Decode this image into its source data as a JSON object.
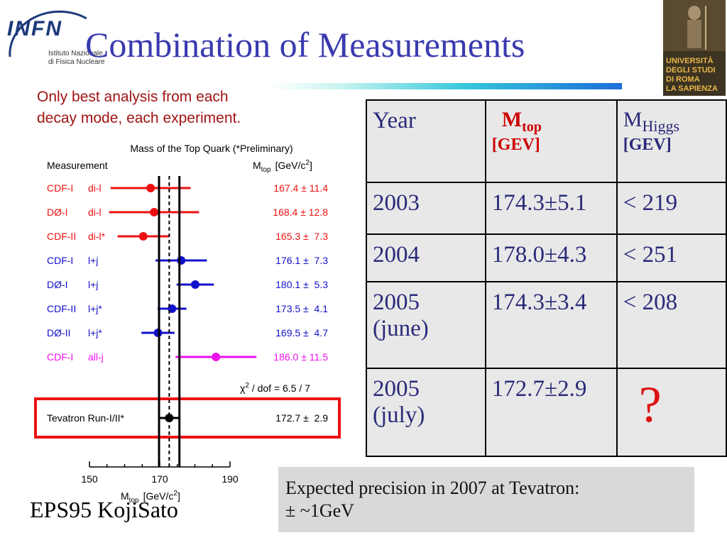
{
  "title": "Combination of Measurements",
  "subtitle": [
    "Only best analysis from each",
    "decay mode, each experiment."
  ],
  "infn_logo": {
    "name": "INFN",
    "line1": "Istituto Nazionale",
    "line2": "di Fisica Nucleare"
  },
  "university_logo": {
    "lines": [
      "UNIVERSITÀ",
      "DEGLI STUDI",
      "DI ROMA",
      "LA SAPIENZA"
    ]
  },
  "table": {
    "headers": {
      "year": "Year",
      "mtop_symbol": "M",
      "mtop_sub": "top",
      "mtop_unit": "[GEV]",
      "mhiggs_symbol": "M",
      "mhiggs_sub": "Higgs",
      "mhiggs_unit": "[GEV]"
    },
    "rows": [
      {
        "year": "2003",
        "year2": "",
        "mtop": "174.3±5.1",
        "mhiggs": "< 219"
      },
      {
        "year": "2004",
        "year2": "",
        "mtop": "178.0±4.3",
        "mhiggs": "< 251"
      },
      {
        "year": "2005",
        "year2": "(june)",
        "mtop": "174.3±3.4",
        "mhiggs": "< 208"
      },
      {
        "year": "2005",
        "year2": "(july)",
        "mtop": "172.7±2.9",
        "mhiggs": "?"
      }
    ]
  },
  "note": {
    "line1": "Expected precision in 2007 at Tevatron:",
    "line2": "± ~1GeV"
  },
  "footer": "EPS95  KojiSato",
  "chart_data": {
    "type": "scatter",
    "title": "Mass of the Top Quark (*Preliminary)",
    "header_left": "Measurement",
    "header_right_symbol": "M",
    "header_right_sub": "top",
    "header_right_unit": "[GeV/c",
    "header_right_sup": "2",
    "header_right_close": "]",
    "xlabel_symbol": "M",
    "xlabel_sub": "top",
    "xlabel_unit": "[GeV/c",
    "xlabel_sup": "2",
    "xlabel_close": "]",
    "xlim": [
      150,
      190
    ],
    "xticks": [
      150,
      170,
      190
    ],
    "combined_value": 172.7,
    "combined_error": 2.9,
    "colors": {
      "red": "#ee1111",
      "blue": "#1111cc",
      "magenta": "#ee11ee",
      "black": "#000000",
      "box": "#ee1111"
    },
    "measurements": [
      {
        "experiment": "CDF-I",
        "channel": "di-l",
        "value": 167.4,
        "error": 11.4,
        "label": "167.4 ± 11.4",
        "color": "red"
      },
      {
        "experiment": "DØ-I",
        "channel": "di-l",
        "value": 168.4,
        "error": 12.8,
        "label": "168.4 ± 12.8",
        "color": "red"
      },
      {
        "experiment": "CDF-II",
        "channel": "di-l*",
        "value": 165.3,
        "error": 7.3,
        "label": "165.3 ±  7.3",
        "color": "red"
      },
      {
        "experiment": "CDF-I",
        "channel": "l+j",
        "value": 176.1,
        "error": 7.3,
        "label": "176.1 ±  7.3",
        "color": "blue"
      },
      {
        "experiment": "DØ-I",
        "channel": "l+j",
        "value": 180.1,
        "error": 5.3,
        "label": "180.1 ±  5.3",
        "color": "blue"
      },
      {
        "experiment": "CDF-II",
        "channel": "l+j*",
        "value": 173.5,
        "error": 4.1,
        "label": "173.5 ±  4.1",
        "color": "blue"
      },
      {
        "experiment": "DØ-II",
        "channel": "l+j*",
        "value": 169.5,
        "error": 4.7,
        "label": "169.5 ±  4.7",
        "color": "blue"
      },
      {
        "experiment": "CDF-I",
        "channel": "all-j",
        "value": 186.0,
        "error": 11.5,
        "label": "186.0 ± 11.5",
        "color": "magenta"
      }
    ],
    "chi2_symbol": "χ",
    "chi2_sup": "2",
    "chi2_text": " / dof  =  6.5 / 7",
    "combined": {
      "name": "Tevatron Run-I/II*",
      "value": 172.7,
      "error": 2.9,
      "label": "172.7 ±  2.9"
    }
  }
}
